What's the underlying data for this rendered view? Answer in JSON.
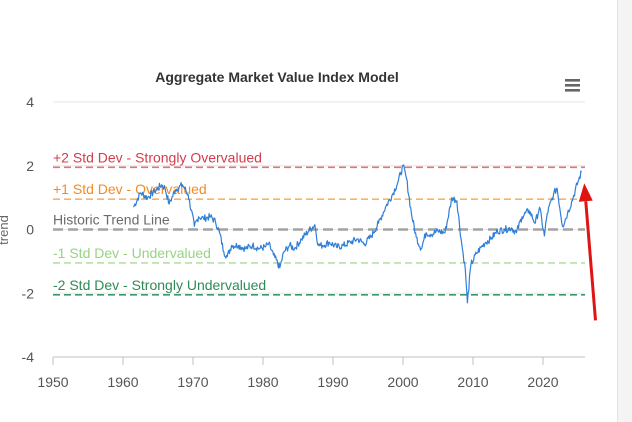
{
  "chart_data": {
    "type": "line",
    "title": "Aggregate Market Value Index Model",
    "xlabel": "",
    "ylabel": "trend",
    "xlim": [
      1950,
      2026
    ],
    "ylim": [
      -4,
      4
    ],
    "x_ticks": [
      "1950",
      "1960",
      "1970",
      "1980",
      "1990",
      "2000",
      "2010",
      "2020"
    ],
    "y_ticks": [
      "4",
      "2",
      "0",
      "-2",
      "-4"
    ],
    "grid": true,
    "colors": {
      "series": "#2f7ed8",
      "arrow": "#e01414"
    },
    "reference_lines": [
      {
        "label": "+2 Std Dev - Strongly Overvalued",
        "y": 1.95,
        "color": "#e0737c",
        "label_color": "#d43c4c"
      },
      {
        "label": "+1 Std Dev - Overvalued",
        "y": 0.95,
        "color": "#f7b26b",
        "label_color": "#f08c28"
      },
      {
        "label": "Historic Trend Line",
        "y": 0.0,
        "color": "#a3a3a3",
        "label_color": "#6b6b6b"
      },
      {
        "label": "-1 Std Dev - Undervalued",
        "y": -1.05,
        "color": "#b5e0a8",
        "label_color": "#97d383"
      },
      {
        "label": "-2 Std Dev - Strongly Undervalued",
        "y": -2.05,
        "color": "#3a9a6a",
        "label_color": "#2e8b57"
      }
    ],
    "series": [
      {
        "x": [
          1961.5,
          1962.5,
          1963.5,
          1964.5,
          1965.5,
          1966,
          1966.6,
          1967.5,
          1968.5,
          1969.3,
          1970.2,
          1970.8,
          1971.5,
          1972.5,
          1973.2,
          1973.8,
          1974.4,
          1974.9,
          1975.5,
          1976.5,
          1977.5,
          1978.5,
          1979.5,
          1980.3,
          1980.8,
          1981.5,
          1982.4,
          1983,
          1983.8,
          1984.5,
          1985.5,
          1986.5,
          1987.4,
          1987.9,
          1988.5,
          1989.5,
          1990.5,
          1991.5,
          1992.5,
          1993.5,
          1994.5,
          1995.5,
          1996.5,
          1997.5,
          1998.5,
          1999.3,
          2000,
          2000.5,
          2001.2,
          2001.9,
          2002.6,
          2003.3,
          2004,
          2005,
          2006,
          2007,
          2007.7,
          2008.3,
          2008.9,
          2009.2,
          2009.7,
          2010.5,
          2011.2,
          2011.8,
          2012.5,
          2013.5,
          2014.5,
          2015.5,
          2016.2,
          2017,
          2018,
          2018.9,
          2019.5,
          2020.2,
          2020.6,
          2021.5,
          2022,
          2022.8,
          2023.5,
          2024.3,
          2025,
          2025.5
        ],
        "y": [
          0.7,
          1.15,
          1.0,
          1.2,
          1.4,
          1.3,
          0.8,
          1.25,
          1.4,
          1.1,
          0.1,
          0.4,
          0.35,
          0.4,
          0.25,
          -0.1,
          -0.7,
          -0.85,
          -0.5,
          -0.5,
          -0.6,
          -0.5,
          -0.6,
          -0.55,
          -0.45,
          -0.8,
          -1.2,
          -0.7,
          -0.5,
          -0.6,
          -0.3,
          -0.05,
          0.15,
          -0.5,
          -0.5,
          -0.4,
          -0.55,
          -0.5,
          -0.4,
          -0.3,
          -0.45,
          -0.2,
          0.2,
          0.7,
          1.1,
          1.5,
          2.0,
          1.6,
          0.5,
          -0.25,
          -0.6,
          -0.1,
          -0.15,
          -0.05,
          -0.1,
          1.0,
          0.9,
          -0.3,
          -1.25,
          -2.3,
          -1.1,
          -0.75,
          -0.55,
          -0.4,
          -0.3,
          -0.05,
          0.0,
          0.05,
          -0.1,
          0.4,
          0.6,
          0.2,
          0.7,
          -0.2,
          0.5,
          1.1,
          1.3,
          0.1,
          0.5,
          1.0,
          1.5,
          1.8
        ]
      }
    ],
    "annotations": [
      {
        "type": "arrow",
        "from": [
          2027.5,
          -2.85
        ],
        "to": [
          2025.9,
          1.45
        ]
      }
    ]
  },
  "ui": {
    "menu_icon": "hamburger-menu-icon"
  }
}
